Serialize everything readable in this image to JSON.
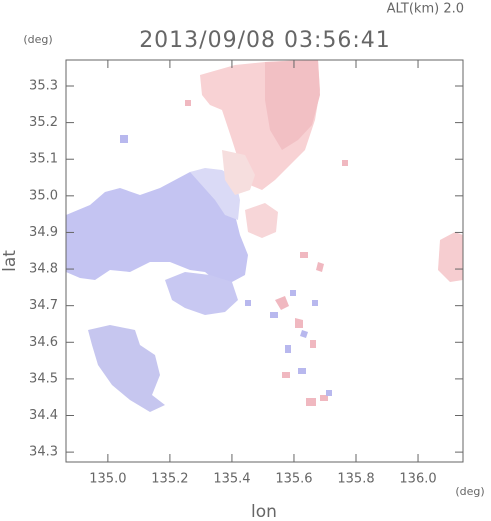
{
  "chart_data": {
    "type": "radar-map",
    "title": "2013/09/08 03:56:41",
    "altitude_label": "ALT(km)  2.0",
    "x_unit": "(deg)",
    "y_unit": "(deg)",
    "x_label": "lon",
    "y_label": "lat",
    "xlim": [
      134.865,
      136.145
    ],
    "ylim": [
      34.273,
      35.371
    ],
    "xticks": [
      {
        "value": 135.0,
        "label": "135.0"
      },
      135.2,
      135.4,
      135.6,
      135.8,
      {
        "value": 136.0,
        "label": "136.0"
      }
    ],
    "yticks": [
      35.3,
      35.2,
      35.1,
      {
        "value": 35.0,
        "label": "35.0"
      },
      34.9,
      34.8,
      34.7,
      34.6,
      34.5,
      34.4,
      34.3
    ]
  }
}
